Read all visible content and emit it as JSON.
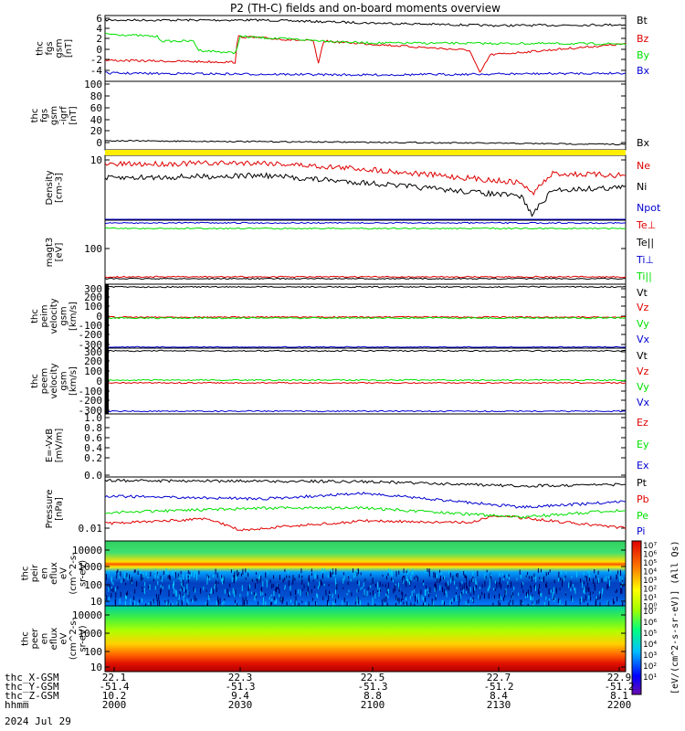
{
  "title": "P2 (TH-C) fields and on-board moments overview",
  "colors": {
    "black": "#000000",
    "red": "#e00000",
    "green": "#00e000",
    "blue": "#0000d0",
    "yellow": "#ffee00"
  },
  "chart_data": [
    {
      "type": "line",
      "ylabel": [
        "thc",
        "fgs",
        "gsm",
        "[nT]"
      ],
      "yticks": [
        "6",
        "4",
        "2",
        "0",
        "-2",
        "-4"
      ],
      "ylim": [
        -5,
        7
      ],
      "series": [
        {
          "name": "Bt",
          "color": "black",
          "x": [
            "2000",
            "2015",
            "2030",
            "2045",
            "2100",
            "2115",
            "2130",
            "2145",
            "2200"
          ],
          "values": [
            5.8,
            5.7,
            5.8,
            5.6,
            5.2,
            4.9,
            4.7,
            4.8,
            4.7
          ]
        },
        {
          "name": "Bz",
          "color": "red",
          "x": [
            "2000",
            "2015",
            "2030",
            "2045",
            "2100",
            "2115",
            "2130",
            "2145",
            "2200"
          ],
          "values": [
            -2.0,
            -2.2,
            1.8,
            1.7,
            1.0,
            0.8,
            -3.8,
            0.8,
            1.5
          ]
        },
        {
          "name": "By",
          "color": "green",
          "x": [
            "2000",
            "2015",
            "2030",
            "2045",
            "2100",
            "2115",
            "2130",
            "2145",
            "2200"
          ],
          "values": [
            2.7,
            2.3,
            3.2,
            2.0,
            1.6,
            1.7,
            1.4,
            1.3,
            1.3
          ]
        },
        {
          "name": "Bx",
          "color": "blue",
          "x": [
            "2000",
            "2015",
            "2030",
            "2045",
            "2100",
            "2115",
            "2130",
            "2145",
            "2200"
          ],
          "values": [
            -3.9,
            -4.0,
            -3.8,
            -4.3,
            -4.2,
            -4.1,
            -4.0,
            -4.2,
            -4.1
          ]
        }
      ]
    },
    {
      "type": "line",
      "ylabel": [
        "thc",
        "fgs",
        "gsm",
        "-igrf",
        "[nT]"
      ],
      "yticks": [
        "100",
        "80",
        "60",
        "40",
        "20",
        "0"
      ],
      "ylim": [
        -10,
        100
      ],
      "series": [
        {
          "name": "Bx",
          "color": "black",
          "x": [
            "2000",
            "2100",
            "2200"
          ],
          "values": [
            3,
            1,
            -2
          ]
        }
      ]
    },
    {
      "type": "line",
      "ylabel": [
        "Density",
        "[cm-3]"
      ],
      "yticks": [
        "10"
      ],
      "series": [
        {
          "name": "Ne",
          "color": "red"
        },
        {
          "name": "Ni",
          "color": "black"
        },
        {
          "name": "Npot",
          "color": "blue"
        }
      ]
    },
    {
      "type": "line",
      "ylabel": [
        "magt3",
        "[eV]"
      ],
      "yticks": [
        "100"
      ],
      "series": [
        {
          "name": "Te⊥",
          "color": "red"
        },
        {
          "name": "Te||",
          "color": "black"
        },
        {
          "name": "Ti⊥",
          "color": "blue"
        },
        {
          "name": "Ti||",
          "color": "green"
        }
      ]
    },
    {
      "type": "line",
      "ylabel": [
        "thc",
        "peim",
        "velocity",
        "gsm",
        "[km/s]"
      ],
      "yticks": [
        "300",
        "200",
        "100",
        "0",
        "-100",
        "-200",
        "-300"
      ],
      "ylim": [
        -300,
        300
      ],
      "series": [
        {
          "name": "Vt",
          "color": "black",
          "values_approx": 300
        },
        {
          "name": "Vz",
          "color": "red",
          "values_approx": -20
        },
        {
          "name": "Vy",
          "color": "green",
          "values_approx": -25
        },
        {
          "name": "Vx",
          "color": "blue",
          "values_approx": -300
        }
      ]
    },
    {
      "type": "line",
      "ylabel": [
        "thc",
        "peem",
        "velocity",
        "gsm",
        "[km/s]"
      ],
      "yticks": [
        "300",
        "200",
        "100",
        "0",
        "-100",
        "-200",
        "-300"
      ],
      "ylim": [
        -300,
        300
      ],
      "series": [
        {
          "name": "Vt",
          "color": "black",
          "values_approx": 300
        },
        {
          "name": "Vz",
          "color": "red",
          "values_approx": -30
        },
        {
          "name": "Vy",
          "color": "green",
          "values_approx": -40
        },
        {
          "name": "Vx",
          "color": "blue",
          "values_approx": -300
        }
      ]
    },
    {
      "type": "line",
      "ylabel": [
        "E=-VxB",
        "[mV/m]"
      ],
      "yticks": [
        "1.0",
        "0.8",
        "0.6",
        "0.4",
        "0.2",
        "0.0"
      ],
      "ylim": [
        -0.05,
        1.0
      ],
      "series": [
        {
          "name": "Ez",
          "color": "red"
        },
        {
          "name": "Ey",
          "color": "green"
        },
        {
          "name": "Ex",
          "color": "blue"
        }
      ]
    },
    {
      "type": "line",
      "ylabel": [
        "Pressure",
        "[nPa]"
      ],
      "yticks": [
        "0.01"
      ],
      "series": [
        {
          "name": "Pt",
          "color": "black"
        },
        {
          "name": "Pb",
          "color": "red"
        },
        {
          "name": "Pe",
          "color": "green"
        },
        {
          "name": "Pi",
          "color": "blue"
        }
      ]
    },
    {
      "type": "heatmap",
      "ylabel": [
        "thc",
        "peir",
        "en",
        "eflux",
        "eV",
        "(cm^2-s-",
        "sr-eV)"
      ],
      "yticks": [
        "10000",
        "1000",
        "100",
        "10"
      ]
    },
    {
      "type": "heatmap",
      "ylabel": [
        "thc",
        "peer",
        "en",
        "eflux",
        "eV",
        "(cm^2-s-",
        "sr-eV)"
      ],
      "yticks": [
        "10000",
        "1000",
        "100",
        "10"
      ]
    }
  ],
  "colorbar": {
    "label": "[eV/(cm^2-s-sr-eV)] (All Qs)",
    "ticks_top": [
      "10⁷",
      "10⁶",
      "10⁵",
      "10⁴",
      "10³",
      "10²",
      "10¹",
      "10⁰"
    ],
    "ticks_bottom": [
      "10⁷",
      "10⁶",
      "10⁵",
      "10⁴",
      "10³",
      "10²",
      "10¹"
    ]
  },
  "xaxis": {
    "rows": [
      {
        "label": "thc_X-GSM",
        "values": [
          "22.1",
          "22.3",
          "22.5",
          "22.7",
          "22.9"
        ]
      },
      {
        "label": "thc_Y-GSM",
        "values": [
          "-51.4",
          "-51.3",
          "-51.3",
          "-51.2",
          "-51.2"
        ]
      },
      {
        "label": "thc_Z-GSM",
        "values": [
          "10.2",
          "9.4",
          "8.8",
          "8.4",
          "8.1"
        ]
      },
      {
        "label": "hhmm",
        "values": [
          "2000",
          "2030",
          "2100",
          "2130",
          "2200"
        ]
      }
    ],
    "date": "2024 Jul 29"
  }
}
